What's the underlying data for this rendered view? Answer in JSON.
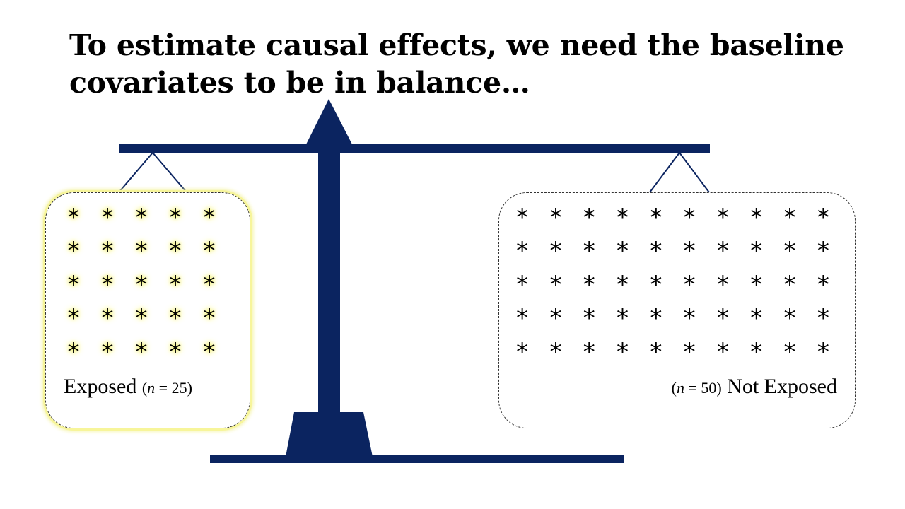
{
  "slide": {
    "title_line1": "To estimate causal effects, we need the baseline",
    "title_line2": "covariates to be in balance…"
  },
  "colors": {
    "scale": "#0b2460",
    "highlight": "#f7f59a",
    "text": "#000000"
  },
  "symbol": "*",
  "exposed": {
    "label": "Exposed",
    "count_open": "(",
    "n_symbol": "n",
    "count_rest": " = 25)",
    "n": 25,
    "highlighted": true
  },
  "not_exposed": {
    "label": "Not Exposed",
    "count_open": "(",
    "n_symbol": "n",
    "count_rest": " = 50)",
    "n": 50,
    "highlighted": false
  }
}
